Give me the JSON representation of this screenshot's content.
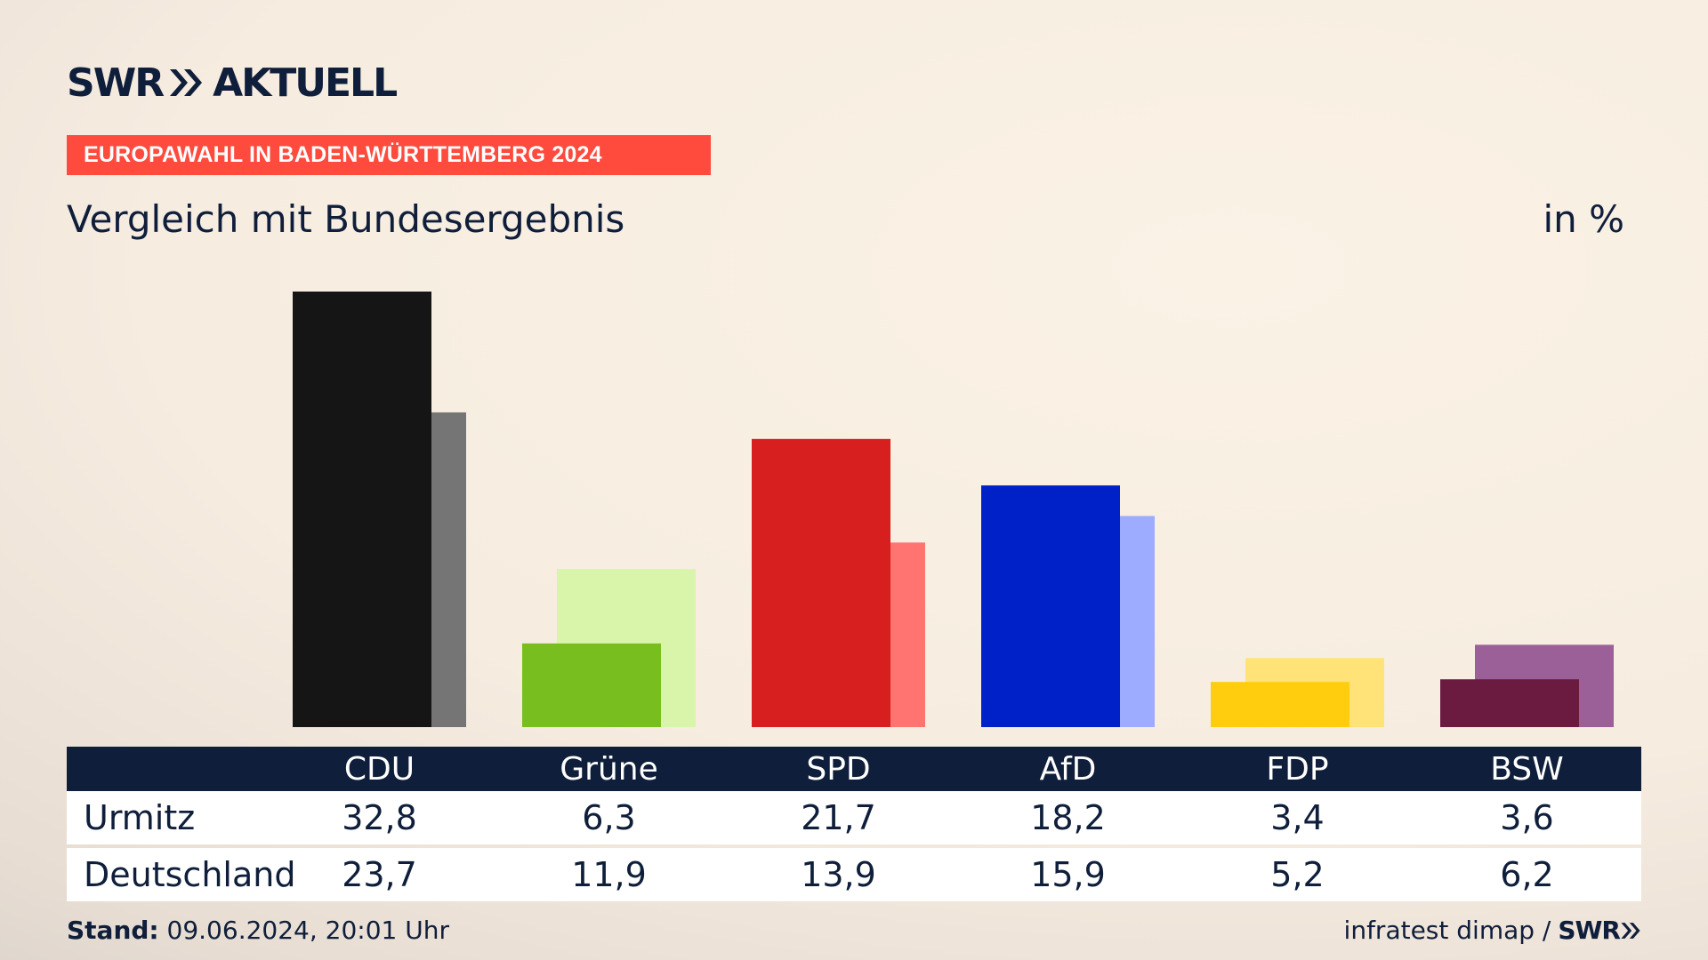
{
  "header": {
    "logo_text": "SWR",
    "logo_sub": "AKTUELL",
    "banner": "EUROPAWAHL IN BADEN-WÜRTTEMBERG 2024",
    "subtitle": "Vergleich mit Bundesergebnis",
    "unit": "in %"
  },
  "table": {
    "rows": [
      {
        "label": "Urmitz",
        "values": [
          "32,8",
          "6,3",
          "21,7",
          "18,2",
          "3,4",
          "3,6"
        ]
      },
      {
        "label": "Deutschland",
        "values": [
          "23,7",
          "11,9",
          "13,9",
          "15,9",
          "5,2",
          "6,2"
        ]
      }
    ]
  },
  "footer": {
    "stand_label": "Stand:",
    "stand_value": "09.06.2024, 20:01 Uhr",
    "source": "infratest dimap /",
    "source_logo": "SWR"
  },
  "colors": {
    "banner": "#ff4b3e",
    "navy": "#0f1e3a"
  },
  "chart_data": {
    "type": "bar",
    "categories": [
      "CDU",
      "Grüne",
      "SPD",
      "AfD",
      "FDP",
      "BSW"
    ],
    "series": [
      {
        "name": "Urmitz",
        "values": [
          32.8,
          6.3,
          21.7,
          18.2,
          3.4,
          3.6
        ],
        "colors": [
          "#151515",
          "#78be1e",
          "#d71f1f",
          "#0021c8",
          "#ffcd0e",
          "#6b1a40"
        ]
      },
      {
        "name": "Deutschland",
        "values": [
          23.7,
          11.9,
          13.9,
          15.9,
          5.2,
          6.2
        ],
        "colors": [
          "#757575",
          "#d8f5a9",
          "#ff7470",
          "#9eacff",
          "#ffe278",
          "#9b6098"
        ]
      }
    ],
    "ylim": [
      0,
      32.8
    ],
    "grid": false
  }
}
